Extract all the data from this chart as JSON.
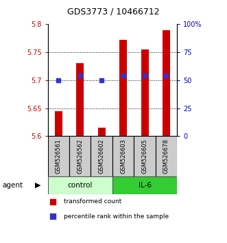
{
  "title": "GDS3773 / 10466712",
  "samples": [
    "GSM526561",
    "GSM526562",
    "GSM526602",
    "GSM526603",
    "GSM526605",
    "GSM526678"
  ],
  "red_values": [
    5.645,
    5.73,
    5.615,
    5.772,
    5.755,
    5.79
  ],
  "blue_values": [
    0.5,
    0.54,
    0.5,
    0.54,
    0.54,
    0.54
  ],
  "ylim_left": [
    5.6,
    5.8
  ],
  "ylim_right": [
    0.0,
    1.0
  ],
  "yticks_left": [
    5.6,
    5.65,
    5.7,
    5.75,
    5.8
  ],
  "ytick_labels_left": [
    "5.6",
    "5.65",
    "5.7",
    "5.75",
    "5.8"
  ],
  "yticks_right": [
    0.0,
    0.25,
    0.5,
    0.75,
    1.0
  ],
  "ytick_labels_right": [
    "0",
    "25",
    "50",
    "75",
    "100%"
  ],
  "grid_yticks": [
    5.65,
    5.7,
    5.75
  ],
  "bar_bottom": 5.6,
  "bar_color": "#cc0000",
  "dot_color": "#3333cc",
  "control_color": "#ccffcc",
  "il6_color": "#33cc33",
  "sample_box_color": "#cccccc",
  "label_color_left": "#cc0000",
  "label_color_right": "#0000cc",
  "legend_red": "transformed count",
  "legend_blue": "percentile rank within the sample",
  "agent_label": "agent",
  "control_label": "control",
  "il6_label": "IL-6",
  "bar_width": 0.35,
  "dot_size": 25
}
